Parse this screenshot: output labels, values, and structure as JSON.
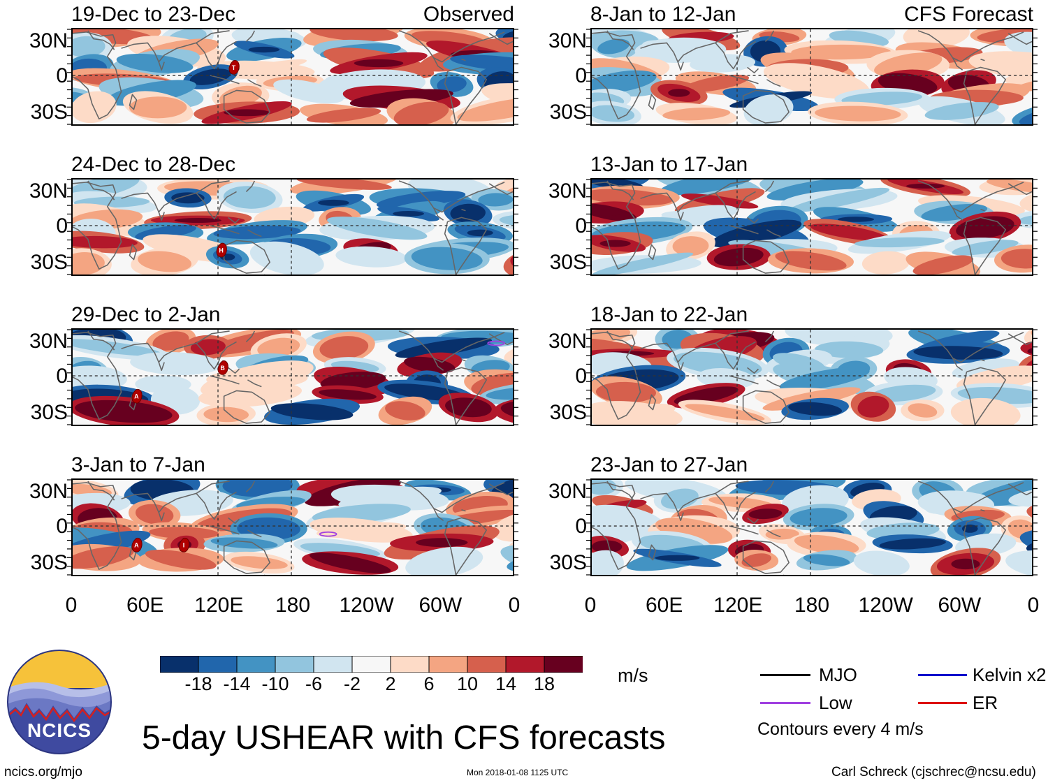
{
  "colors": {
    "scale": [
      "#08306b",
      "#2166ac",
      "#4393c3",
      "#92c5de",
      "#d1e5f0",
      "#f7f7f7",
      "#fddbc7",
      "#f4a582",
      "#d6604d",
      "#b2182b",
      "#67001f"
    ],
    "mjo": "#000000",
    "kelvin": "#0000cc",
    "low": "#a040e0",
    "er": "#dd0000",
    "coast": "#666666",
    "logo_sky": "#f6c23a",
    "logo_mountain": "#4a5aa8",
    "logo_circle": "#2c3580"
  },
  "headers": {
    "observed": "Observed",
    "forecast": "CFS Forecast"
  },
  "observed_panels": [
    {
      "title": "19-Dec to 23-Dec",
      "storms": [
        {
          "letter": "T"
        }
      ]
    },
    {
      "title": "24-Dec to 28-Dec",
      "storms": [
        {
          "letter": "H"
        }
      ]
    },
    {
      "title": "29-Dec to 2-Jan",
      "storms": [
        {
          "letter": "B"
        },
        {
          "letter": "A"
        }
      ],
      "contour": "low"
    },
    {
      "title": "3-Jan to 7-Jan",
      "storms": [
        {
          "letter": "A"
        },
        {
          "letter": "I"
        }
      ],
      "contour": "low"
    }
  ],
  "forecast_panels": [
    {
      "title": "8-Jan to 12-Jan"
    },
    {
      "title": "13-Jan to 17-Jan"
    },
    {
      "title": "18-Jan to 22-Jan"
    },
    {
      "title": "23-Jan to 27-Jan"
    }
  ],
  "lat_labels": [
    "30N",
    "0",
    "30S"
  ],
  "lon_labels": [
    "0",
    "60E",
    "120E",
    "180",
    "120W",
    "60W",
    "0"
  ],
  "colorbar": {
    "tick_labels": [
      "-18",
      "-14",
      "-10",
      "-6",
      "-2",
      "2",
      "6",
      "10",
      "14",
      "18"
    ],
    "units": "m/s"
  },
  "legend": {
    "mjo": "MJO",
    "kelvin": "Kelvin x2",
    "low": "Low",
    "er": "ER",
    "contours_note": "Contours every 4 m/s"
  },
  "logo": {
    "text": "NCICS"
  },
  "footer": {
    "title": "5-day USHEAR with CFS forecasts",
    "url": "ncics.org/mjo",
    "timestamp": "Mon 2018-01-08 1125 UTC",
    "credit": "Carl Schreck (cjschrec@ncsu.edu)"
  }
}
